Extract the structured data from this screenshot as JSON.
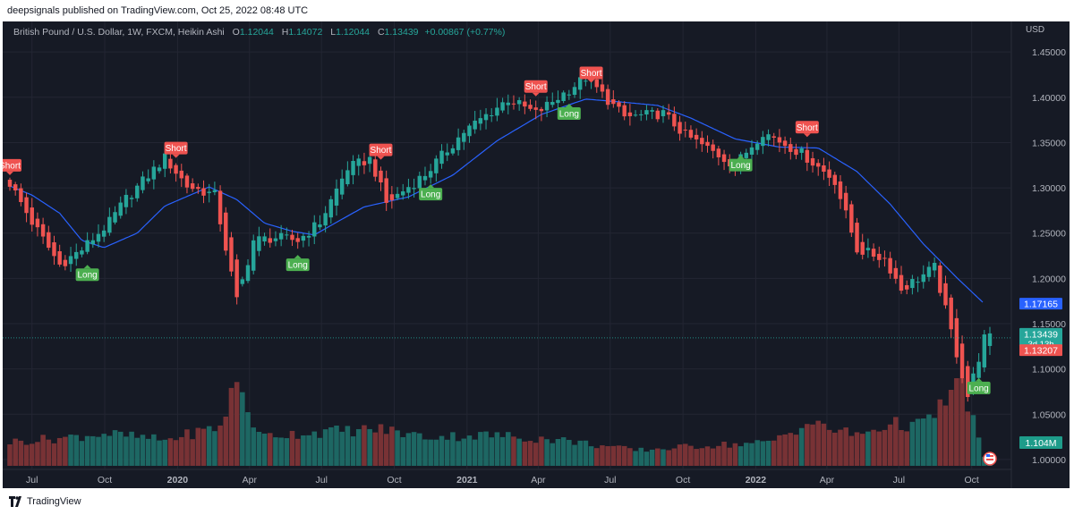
{
  "header": {
    "published": "deepsignals published on TradingView.com, Oct 25, 2022 08:48 UTC"
  },
  "legend": {
    "symbol": "British Pound / U.S. Dollar, 1W, FXCM, Heikin Ashi",
    "open_label": "O",
    "open": "1.12044",
    "high_label": "H",
    "high": "1.14072",
    "low_label": "L",
    "low": "1.12044",
    "close_label": "C",
    "close": "1.13439",
    "change": "+0.00867 (+0.77%)"
  },
  "footer": {
    "brand": "TradingView"
  },
  "colors": {
    "background": "#161a25",
    "bull": "#26a69a",
    "bear": "#ef5350",
    "ma": "#2962ff",
    "grid": "#232633",
    "text": "#b2b5be"
  },
  "chart_data": {
    "type": "candlestick",
    "candle_style": "Heikin Ashi",
    "interval": "1W",
    "x_range": [
      "2019-06-03",
      "2022-10-24"
    ],
    "ylim": [
      0.995,
      1.462
    ],
    "y_axis_unit": "USD",
    "y_ticks": [
      "1.45000",
      "1.40000",
      "1.35000",
      "1.30000",
      "1.25000",
      "1.20000",
      "1.15000",
      "1.10000",
      "1.05000",
      "1.00000"
    ],
    "y_tick_values": [
      1.45,
      1.4,
      1.35,
      1.3,
      1.25,
      1.2,
      1.15,
      1.1,
      1.05,
      1.0
    ],
    "x_ticks": [
      {
        "date": "2019-07-01",
        "label": "Jul",
        "bold": false
      },
      {
        "date": "2019-10-01",
        "label": "Oct",
        "bold": false
      },
      {
        "date": "2020-01-01",
        "label": "2020",
        "bold": true
      },
      {
        "date": "2020-04-01",
        "label": "Apr",
        "bold": false
      },
      {
        "date": "2020-07-01",
        "label": "Jul",
        "bold": false
      },
      {
        "date": "2020-10-01",
        "label": "Oct",
        "bold": false
      },
      {
        "date": "2021-01-01",
        "label": "2021",
        "bold": true
      },
      {
        "date": "2021-04-01",
        "label": "Apr",
        "bold": false
      },
      {
        "date": "2021-07-01",
        "label": "Jul",
        "bold": false
      },
      {
        "date": "2021-10-01",
        "label": "Oct",
        "bold": false
      },
      {
        "date": "2022-01-01",
        "label": "2022",
        "bold": true
      },
      {
        "date": "2022-04-01",
        "label": "Apr",
        "bold": false
      },
      {
        "date": "2022-07-01",
        "label": "Jul",
        "bold": false
      },
      {
        "date": "2022-10-01",
        "label": "Oct",
        "bold": false
      }
    ],
    "close_path": [
      [
        "2019-06-03",
        1.305
      ],
      [
        "2019-07-01",
        1.262
      ],
      [
        "2019-08-05",
        1.215
      ],
      [
        "2019-09-02",
        1.232
      ],
      [
        "2019-10-07",
        1.262
      ],
      [
        "2019-10-28",
        1.288
      ],
      [
        "2019-12-16",
        1.333
      ],
      [
        "2020-01-13",
        1.302
      ],
      [
        "2020-02-17",
        1.292
      ],
      [
        "2020-03-16",
        1.175
      ],
      [
        "2020-04-06",
        1.242
      ],
      [
        "2020-05-04",
        1.245
      ],
      [
        "2020-06-01",
        1.242
      ],
      [
        "2020-06-29",
        1.262
      ],
      [
        "2020-08-03",
        1.322
      ],
      [
        "2020-09-01",
        1.332
      ],
      [
        "2020-09-21",
        1.283
      ],
      [
        "2020-11-09",
        1.315
      ],
      [
        "2020-12-28",
        1.362
      ],
      [
        "2021-02-22",
        1.398
      ],
      [
        "2021-03-29",
        1.382
      ],
      [
        "2021-05-31",
        1.422
      ],
      [
        "2021-07-19",
        1.378
      ],
      [
        "2021-09-06",
        1.382
      ],
      [
        "2021-10-04",
        1.358
      ],
      [
        "2021-12-06",
        1.325
      ],
      [
        "2022-01-10",
        1.362
      ],
      [
        "2022-02-28",
        1.338
      ],
      [
        "2022-04-11",
        1.308
      ],
      [
        "2022-05-09",
        1.232
      ],
      [
        "2022-06-13",
        1.222
      ],
      [
        "2022-07-04",
        1.188
      ],
      [
        "2022-08-15",
        1.212
      ],
      [
        "2022-09-26",
        1.07
      ],
      [
        "2022-10-17",
        1.134
      ]
    ],
    "ma_path": [
      [
        "2019-06-03",
        1.302
      ],
      [
        "2019-07-01",
        1.292
      ],
      [
        "2019-08-05",
        1.272
      ],
      [
        "2019-09-02",
        1.242
      ],
      [
        "2019-09-30",
        1.234
      ],
      [
        "2019-11-11",
        1.25
      ],
      [
        "2019-12-16",
        1.28
      ],
      [
        "2020-02-10",
        1.301
      ],
      [
        "2020-03-16",
        1.287
      ],
      [
        "2020-04-20",
        1.261
      ],
      [
        "2020-05-25",
        1.252
      ],
      [
        "2020-06-22",
        1.248
      ],
      [
        "2020-07-20",
        1.262
      ],
      [
        "2020-08-24",
        1.279
      ],
      [
        "2020-10-19",
        1.29
      ],
      [
        "2020-12-14",
        1.314
      ],
      [
        "2021-02-08",
        1.352
      ],
      [
        "2021-04-05",
        1.381
      ],
      [
        "2021-05-31",
        1.398
      ],
      [
        "2021-07-12",
        1.395
      ],
      [
        "2021-08-30",
        1.391
      ],
      [
        "2021-10-11",
        1.377
      ],
      [
        "2021-12-06",
        1.354
      ],
      [
        "2022-01-31",
        1.345
      ],
      [
        "2022-03-21",
        1.344
      ],
      [
        "2022-05-09",
        1.318
      ],
      [
        "2022-06-20",
        1.282
      ],
      [
        "2022-08-01",
        1.238
      ],
      [
        "2022-09-12",
        1.201
      ],
      [
        "2022-10-17",
        1.172
      ]
    ],
    "signals": [
      {
        "label": "Short",
        "date": "2019-06-03",
        "price": 1.318
      },
      {
        "label": "Long",
        "date": "2019-09-09",
        "price": 1.211
      },
      {
        "label": "Short",
        "date": "2019-12-30",
        "price": 1.337
      },
      {
        "label": "Long",
        "date": "2020-06-01",
        "price": 1.222
      },
      {
        "label": "Short",
        "date": "2020-09-14",
        "price": 1.335
      },
      {
        "label": "Long",
        "date": "2020-11-16",
        "price": 1.3
      },
      {
        "label": "Short",
        "date": "2021-03-29",
        "price": 1.405
      },
      {
        "label": "Long",
        "date": "2021-05-10",
        "price": 1.389
      },
      {
        "label": "Short",
        "date": "2021-06-07",
        "price": 1.42
      },
      {
        "label": "Long",
        "date": "2021-12-13",
        "price": 1.332
      },
      {
        "label": "Short",
        "date": "2022-03-07",
        "price": 1.36
      },
      {
        "label": "Long",
        "date": "2022-10-10",
        "price": 1.086
      }
    ],
    "volume_path": [
      [
        "2019-06-03",
        0.28
      ],
      [
        "2019-08-12",
        0.33
      ],
      [
        "2019-09-30",
        0.38
      ],
      [
        "2019-12-16",
        0.3
      ],
      [
        "2020-02-24",
        0.46
      ],
      [
        "2020-03-16",
        1.0
      ],
      [
        "2020-04-13",
        0.35
      ],
      [
        "2020-07-06",
        0.4
      ],
      [
        "2020-09-14",
        0.43
      ],
      [
        "2020-11-09",
        0.34
      ],
      [
        "2021-02-01",
        0.36
      ],
      [
        "2021-05-03",
        0.3
      ],
      [
        "2021-08-02",
        0.18
      ],
      [
        "2021-11-01",
        0.24
      ],
      [
        "2022-01-17",
        0.27
      ],
      [
        "2022-03-07",
        0.5
      ],
      [
        "2022-05-09",
        0.36
      ],
      [
        "2022-06-20",
        0.49
      ],
      [
        "2022-08-01",
        0.48
      ],
      [
        "2022-09-19",
        0.97
      ],
      [
        "2022-10-17",
        0.1
      ]
    ],
    "price_labels": [
      {
        "text": "1.17165",
        "value": 1.17165,
        "color": "#2962ff",
        "sub": ""
      },
      {
        "text": "1.13439",
        "value": 1.13439,
        "color": "#26a69a",
        "sub": "3d 13h"
      },
      {
        "text": "1.13207",
        "value": 1.13207,
        "color": "#ef5350",
        "sub": ""
      }
    ],
    "volume_label": "1.104M",
    "last_price": 1.13439
  }
}
